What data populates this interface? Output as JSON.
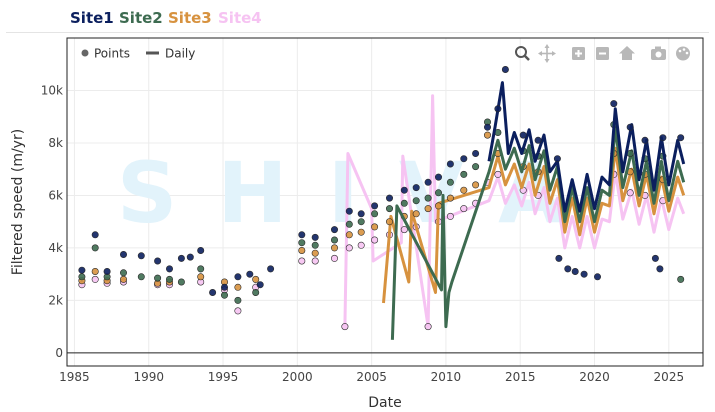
{
  "tabs": [
    {
      "label": "Site1",
      "color": "#0b1f5e"
    },
    {
      "label": "Site2",
      "color": "#3d6b50"
    },
    {
      "label": "Site3",
      "color": "#d7923f"
    },
    {
      "label": "Site4",
      "color": "#f6c3f2"
    }
  ],
  "watermark": "SHIVA",
  "legend": {
    "points_label": "Points",
    "daily_label": "Daily",
    "placement": "top-left"
  },
  "modebar": [
    "zoom-icon",
    "pan-icon",
    "zoom-in-icon",
    "zoom-out-icon",
    "home-icon",
    "camera-icon",
    "palette-icon"
  ],
  "chart_data": {
    "type": "scatter",
    "xlabel": "Date",
    "ylabel": "Filtered speed (m/yr)",
    "xlim": [
      1984.5,
      2027.3
    ],
    "ylim": [
      -500,
      12000
    ],
    "x_ticks": [
      1985,
      1990,
      1995,
      2000,
      2005,
      2010,
      2015,
      2020,
      2025
    ],
    "x_tick_labels": [
      "1985",
      "1990",
      "1995",
      "2000",
      "2005",
      "2010",
      "2015",
      "2020",
      "2025"
    ],
    "y_ticks": [
      0,
      2000,
      4000,
      6000,
      8000,
      10000
    ],
    "y_tick_labels": [
      "0",
      "2k",
      "4k",
      "6k",
      "8k",
      "10k"
    ],
    "grid": true,
    "series": [
      {
        "name": "Site1",
        "color": "#0b1f5e",
        "points": [
          [
            1985.5,
            3150
          ],
          [
            1986.4,
            4500
          ],
          [
            1987.2,
            3100
          ],
          [
            1988.3,
            3750
          ],
          [
            1989.5,
            3700
          ],
          [
            1990.6,
            3500
          ],
          [
            1991.4,
            3200
          ],
          [
            1992.2,
            3600
          ],
          [
            1992.8,
            3650
          ],
          [
            1993.5,
            3900
          ],
          [
            1994.3,
            2300
          ],
          [
            1995.1,
            2500
          ],
          [
            1996.0,
            2900
          ],
          [
            1996.8,
            3000
          ],
          [
            1997.5,
            2600
          ],
          [
            1998.2,
            3200
          ],
          [
            2000.3,
            4500
          ],
          [
            2001.2,
            4400
          ],
          [
            2002.5,
            4700
          ],
          [
            2003.5,
            5400
          ],
          [
            2004.3,
            5300
          ],
          [
            2005.2,
            5600
          ],
          [
            2006.2,
            5900
          ],
          [
            2007.2,
            6200
          ],
          [
            2008.0,
            6300
          ],
          [
            2008.8,
            6500
          ],
          [
            2009.5,
            6700
          ],
          [
            2010.3,
            7200
          ],
          [
            2011.2,
            7400
          ],
          [
            2012.0,
            7600
          ],
          [
            2012.8,
            8600
          ],
          [
            2013.5,
            9300
          ],
          [
            2014.0,
            10800
          ],
          [
            2015.2,
            8300
          ],
          [
            2016.2,
            8100
          ],
          [
            2017.5,
            7400
          ],
          [
            2017.6,
            3600
          ],
          [
            2018.2,
            3200
          ],
          [
            2018.7,
            3100
          ],
          [
            2019.3,
            3000
          ],
          [
            2020.2,
            2900
          ],
          [
            2021.3,
            9500
          ],
          [
            2022.4,
            8600
          ],
          [
            2023.4,
            8100
          ],
          [
            2024.1,
            3600
          ],
          [
            2024.4,
            3200
          ],
          [
            2024.6,
            8200
          ],
          [
            2025.8,
            8200
          ]
        ],
        "daily": [
          [
            2012.9,
            7300
          ],
          [
            2013.3,
            8600
          ],
          [
            2013.8,
            10300
          ],
          [
            2014.2,
            7600
          ],
          [
            2014.6,
            8400
          ],
          [
            2015.1,
            7600
          ],
          [
            2015.6,
            8500
          ],
          [
            2016.0,
            7300
          ],
          [
            2016.6,
            8300
          ],
          [
            2017.0,
            6900
          ],
          [
            2017.5,
            7300
          ],
          [
            2018.0,
            5400
          ],
          [
            2018.5,
            6600
          ],
          [
            2019.0,
            5400
          ],
          [
            2019.5,
            6800
          ],
          [
            2020.0,
            5500
          ],
          [
            2020.5,
            6700
          ],
          [
            2021.0,
            6400
          ],
          [
            2021.4,
            9300
          ],
          [
            2021.9,
            6900
          ],
          [
            2022.5,
            8700
          ],
          [
            2023.0,
            6600
          ],
          [
            2023.5,
            8100
          ],
          [
            2024.0,
            6200
          ],
          [
            2024.5,
            8200
          ],
          [
            2025.0,
            6400
          ],
          [
            2025.6,
            8100
          ],
          [
            2026.0,
            7200
          ]
        ]
      },
      {
        "name": "Site2",
        "color": "#3d6b50",
        "points": [
          [
            1985.5,
            2900
          ],
          [
            1986.4,
            4000
          ],
          [
            1987.2,
            2900
          ],
          [
            1988.3,
            3050
          ],
          [
            1989.5,
            2900
          ],
          [
            1990.6,
            2850
          ],
          [
            1991.4,
            2800
          ],
          [
            1992.2,
            2700
          ],
          [
            1993.5,
            3200
          ],
          [
            1995.1,
            2200
          ],
          [
            1996.0,
            2000
          ],
          [
            1997.2,
            2300
          ],
          [
            2000.3,
            4200
          ],
          [
            2001.2,
            4100
          ],
          [
            2002.5,
            4300
          ],
          [
            2003.5,
            4900
          ],
          [
            2004.3,
            5000
          ],
          [
            2005.2,
            5300
          ],
          [
            2006.2,
            5500
          ],
          [
            2007.2,
            5700
          ],
          [
            2008.0,
            5800
          ],
          [
            2008.8,
            5900
          ],
          [
            2009.5,
            6100
          ],
          [
            2010.3,
            6500
          ],
          [
            2011.2,
            6800
          ],
          [
            2012.0,
            7100
          ],
          [
            2012.8,
            8800
          ],
          [
            2013.5,
            8400
          ],
          [
            2015.2,
            7700
          ],
          [
            2016.2,
            7500
          ],
          [
            2021.3,
            8700
          ],
          [
            2022.4,
            7600
          ],
          [
            2023.4,
            7400
          ],
          [
            2024.6,
            7500
          ],
          [
            2025.8,
            2800
          ]
        ],
        "daily": [
          [
            2006.4,
            500
          ],
          [
            2006.7,
            5600
          ],
          [
            2009.7,
            2400
          ],
          [
            2009.8,
            6000
          ],
          [
            2010.0,
            1000
          ],
          [
            2010.2,
            2300
          ],
          [
            2010.4,
            2700
          ],
          [
            2012.9,
            6900
          ],
          [
            2013.5,
            8100
          ],
          [
            2014.0,
            7000
          ],
          [
            2014.6,
            7800
          ],
          [
            2015.1,
            6900
          ],
          [
            2015.6,
            7900
          ],
          [
            2016.0,
            6600
          ],
          [
            2016.6,
            7700
          ],
          [
            2017.0,
            6200
          ],
          [
            2017.5,
            7100
          ],
          [
            2018.0,
            5000
          ],
          [
            2018.5,
            6300
          ],
          [
            2019.0,
            5000
          ],
          [
            2019.5,
            6300
          ],
          [
            2020.0,
            5000
          ],
          [
            2020.5,
            6200
          ],
          [
            2021.0,
            6000
          ],
          [
            2021.4,
            8600
          ],
          [
            2021.9,
            6300
          ],
          [
            2022.5,
            7700
          ],
          [
            2023.0,
            6000
          ],
          [
            2023.5,
            7300
          ],
          [
            2024.0,
            5700
          ],
          [
            2024.5,
            7300
          ],
          [
            2025.0,
            5800
          ],
          [
            2025.6,
            7300
          ],
          [
            2026.0,
            6500
          ]
        ]
      },
      {
        "name": "Site3",
        "color": "#d7923f",
        "points": [
          [
            1985.5,
            2750
          ],
          [
            1986.4,
            3100
          ],
          [
            1987.2,
            2750
          ],
          [
            1988.3,
            2800
          ],
          [
            1990.6,
            2650
          ],
          [
            1991.4,
            2700
          ],
          [
            1993.5,
            2900
          ],
          [
            1995.1,
            2700
          ],
          [
            1996.0,
            2500
          ],
          [
            1997.2,
            2800
          ],
          [
            2000.3,
            3900
          ],
          [
            2001.2,
            3800
          ],
          [
            2002.5,
            4000
          ],
          [
            2003.5,
            4500
          ],
          [
            2004.3,
            4600
          ],
          [
            2005.2,
            4800
          ],
          [
            2006.2,
            5000
          ],
          [
            2007.2,
            5200
          ],
          [
            2008.0,
            5300
          ],
          [
            2008.8,
            5500
          ],
          [
            2009.5,
            5600
          ],
          [
            2010.3,
            5900
          ],
          [
            2011.2,
            6200
          ],
          [
            2012.0,
            6400
          ],
          [
            2012.8,
            8300
          ],
          [
            2013.5,
            7600
          ],
          [
            2015.2,
            7100
          ],
          [
            2016.2,
            6900
          ],
          [
            2021.3,
            7600
          ],
          [
            2022.4,
            6900
          ],
          [
            2023.4,
            6800
          ],
          [
            2024.6,
            6600
          ]
        ],
        "daily": [
          [
            2005.8,
            1900
          ],
          [
            2006.3,
            5200
          ],
          [
            2007.5,
            2700
          ],
          [
            2007.7,
            5400
          ],
          [
            2009.3,
            2300
          ],
          [
            2009.5,
            5700
          ],
          [
            2012.9,
            6300
          ],
          [
            2013.5,
            7500
          ],
          [
            2014.0,
            6400
          ],
          [
            2014.6,
            7200
          ],
          [
            2015.1,
            6300
          ],
          [
            2015.6,
            7200
          ],
          [
            2016.0,
            6000
          ],
          [
            2016.6,
            7100
          ],
          [
            2017.0,
            5700
          ],
          [
            2017.5,
            6600
          ],
          [
            2018.0,
            4600
          ],
          [
            2018.5,
            5900
          ],
          [
            2019.0,
            4500
          ],
          [
            2019.5,
            5900
          ],
          [
            2020.0,
            4600
          ],
          [
            2020.5,
            5700
          ],
          [
            2021.0,
            5600
          ],
          [
            2021.4,
            7800
          ],
          [
            2021.9,
            5800
          ],
          [
            2022.5,
            7000
          ],
          [
            2023.0,
            5600
          ],
          [
            2023.5,
            6800
          ],
          [
            2024.0,
            5300
          ],
          [
            2024.5,
            6700
          ],
          [
            2025.0,
            5400
          ],
          [
            2025.6,
            6700
          ],
          [
            2026.0,
            6000
          ]
        ]
      },
      {
        "name": "Site4",
        "color": "#f6c3f2",
        "points": [
          [
            1985.5,
            2600
          ],
          [
            1986.4,
            2800
          ],
          [
            1987.2,
            2650
          ],
          [
            1988.3,
            2700
          ],
          [
            1990.6,
            2600
          ],
          [
            1991.4,
            2600
          ],
          [
            1993.5,
            2700
          ],
          [
            1995.1,
            2400
          ],
          [
            1996.0,
            1600
          ],
          [
            1997.2,
            2500
          ],
          [
            2000.3,
            3500
          ],
          [
            2001.2,
            3500
          ],
          [
            2002.5,
            3600
          ],
          [
            2003.2,
            1000
          ],
          [
            2003.5,
            4000
          ],
          [
            2004.3,
            4100
          ],
          [
            2005.2,
            4300
          ],
          [
            2006.2,
            4500
          ],
          [
            2007.2,
            4700
          ],
          [
            2008.0,
            4800
          ],
          [
            2008.8,
            1000
          ],
          [
            2009.5,
            5000
          ],
          [
            2010.3,
            5200
          ],
          [
            2011.2,
            5500
          ],
          [
            2012.0,
            5700
          ],
          [
            2012.8,
            6500
          ],
          [
            2013.5,
            6800
          ],
          [
            2015.2,
            6200
          ],
          [
            2016.2,
            6000
          ],
          [
            2021.3,
            6800
          ],
          [
            2022.4,
            6100
          ],
          [
            2023.4,
            6000
          ],
          [
            2024.6,
            5800
          ]
        ],
        "daily": [
          [
            2003.2,
            1000
          ],
          [
            2003.4,
            7600
          ],
          [
            2005.0,
            5500
          ],
          [
            2005.1,
            3500
          ],
          [
            2007.0,
            4200
          ],
          [
            2007.1,
            7500
          ],
          [
            2008.8,
            1000
          ],
          [
            2009.1,
            9800
          ],
          [
            2009.3,
            5000
          ],
          [
            2012.9,
            5800
          ],
          [
            2013.5,
            6700
          ],
          [
            2014.0,
            5700
          ],
          [
            2014.6,
            6400
          ],
          [
            2015.1,
            5600
          ],
          [
            2015.6,
            6500
          ],
          [
            2016.0,
            5300
          ],
          [
            2016.6,
            6300
          ],
          [
            2017.0,
            5000
          ],
          [
            2017.5,
            5900
          ],
          [
            2018.0,
            4000
          ],
          [
            2018.5,
            5200
          ],
          [
            2019.0,
            4000
          ],
          [
            2019.5,
            5200
          ],
          [
            2020.0,
            4000
          ],
          [
            2020.5,
            5100
          ],
          [
            2021.0,
            5000
          ],
          [
            2021.4,
            6900
          ],
          [
            2021.9,
            5100
          ],
          [
            2022.5,
            6200
          ],
          [
            2023.0,
            4900
          ],
          [
            2023.5,
            6000
          ],
          [
            2024.0,
            4600
          ],
          [
            2024.5,
            5900
          ],
          [
            2025.0,
            4700
          ],
          [
            2025.6,
            5900
          ],
          [
            2026.0,
            5300
          ]
        ]
      }
    ]
  }
}
